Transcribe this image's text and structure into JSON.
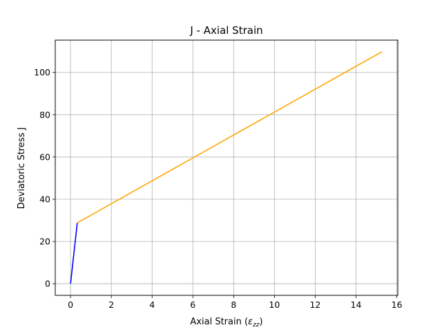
{
  "chart_data": {
    "type": "line",
    "title": "J - Axial Strain",
    "xlabel": "Axial Strain (",
    "xlabel_symbol": "ε",
    "xlabel_subscript": "zz",
    "xlabel_close": ")",
    "ylabel": "Deviatoric Stress J",
    "xlim": [
      -0.75,
      16.05
    ],
    "ylim": [
      -5.5,
      115.3
    ],
    "xticks": [
      0,
      2,
      4,
      6,
      8,
      10,
      12,
      14,
      16
    ],
    "yticks": [
      0,
      20,
      40,
      60,
      80,
      100
    ],
    "xtick_labels": [
      "0",
      "2",
      "4",
      "6",
      "8",
      "10",
      "12",
      "14",
      "16"
    ],
    "ytick_labels": [
      "0",
      "20",
      "40",
      "60",
      "80",
      "100"
    ],
    "grid": true,
    "series": [
      {
        "color": "#0000ff",
        "x": [
          0,
          0.33
        ],
        "y": [
          0,
          28.8
        ]
      },
      {
        "color": "#ffa500",
        "x": [
          0.33,
          15.27
        ],
        "y": [
          28.8,
          109.8
        ]
      }
    ]
  }
}
